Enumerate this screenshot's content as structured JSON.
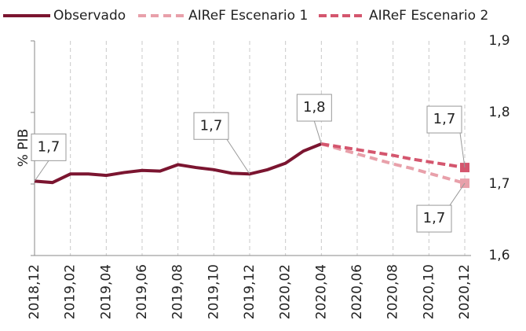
{
  "chart_data": {
    "type": "line",
    "y_axis_label": "% PIB",
    "categories": [
      "2018,12",
      null,
      "2019,02",
      null,
      "2019,04",
      null,
      "2019,06",
      null,
      "2019,08",
      null,
      "2019,10",
      null,
      "2019,12",
      null,
      "2020,02",
      null,
      "2020,04",
      null,
      "2020,06",
      null,
      "2020,08",
      null,
      "2020,10",
      null,
      "2020,12"
    ],
    "series": [
      {
        "name": "Observado",
        "color": "#7b1530",
        "values": [
          1.704,
          1.702,
          1.714,
          1.714,
          1.712,
          1.716,
          1.719,
          1.718,
          1.727,
          1.723,
          1.72,
          1.715,
          1.714,
          1.72,
          1.729,
          1.746,
          1.756,
          null,
          null,
          null,
          null,
          null,
          null,
          null,
          null
        ],
        "value_labels": [
          "1,7",
          null,
          null,
          null,
          null,
          null,
          null,
          null,
          null,
          null,
          null,
          null,
          "1,7",
          null,
          null,
          null,
          "1,8",
          null,
          null,
          null,
          null,
          null,
          null,
          null,
          null
        ]
      },
      {
        "name": "AIReF Escenario 1",
        "color": "#e8a0aa",
        "values": [
          null,
          null,
          null,
          null,
          null,
          null,
          null,
          null,
          null,
          null,
          null,
          null,
          null,
          null,
          null,
          null,
          1.756,
          1.749,
          1.742,
          1.735,
          1.728,
          1.722,
          1.715,
          1.708,
          1.701
        ],
        "value_labels": [
          null,
          null,
          null,
          null,
          null,
          null,
          null,
          null,
          null,
          null,
          null,
          null,
          null,
          null,
          null,
          null,
          null,
          null,
          null,
          null,
          null,
          null,
          null,
          null,
          "1,7"
        ]
      },
      {
        "name": "AIReF Escenario 2",
        "color": "#d4566e",
        "values": [
          null,
          null,
          null,
          null,
          null,
          null,
          null,
          null,
          null,
          null,
          null,
          null,
          null,
          null,
          null,
          null,
          1.756,
          1.752,
          1.748,
          1.744,
          1.74,
          1.735,
          1.731,
          1.727,
          1.723
        ],
        "value_labels": [
          null,
          null,
          null,
          null,
          null,
          null,
          null,
          null,
          null,
          null,
          null,
          null,
          null,
          null,
          null,
          null,
          null,
          null,
          null,
          null,
          null,
          null,
          null,
          null,
          "1,7"
        ]
      }
    ],
    "ylim": [
      1.6,
      1.9
    ],
    "yticks": [
      {
        "value": 1.6,
        "label": "1,6"
      },
      {
        "value": 1.7,
        "label": "1,7"
      },
      {
        "value": 1.8,
        "label": "1,8"
      },
      {
        "value": 1.9,
        "label": "1,9"
      }
    ],
    "y_axis_side": "right",
    "grid": "x",
    "legend": "top"
  }
}
